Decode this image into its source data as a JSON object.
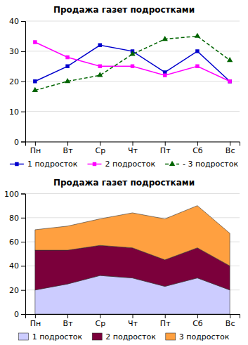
{
  "chart_data": [
    {
      "type": "line",
      "title": "Продажа газет подростками",
      "categories": [
        "Пн",
        "Вт",
        "Ср",
        "Чт",
        "Пт",
        "Сб",
        "Вс"
      ],
      "series": [
        {
          "name": "1 подросток",
          "color": "#0000CD",
          "values": [
            20,
            25,
            32,
            30,
            23,
            30,
            20
          ],
          "marker": "square",
          "line_style": "solid"
        },
        {
          "name": "2 подросток",
          "color": "#FF00FF",
          "values": [
            33,
            28,
            25,
            25,
            22,
            25,
            20
          ],
          "marker": "square",
          "line_style": "solid"
        },
        {
          "name": "- 3 подросток",
          "color": "#006400",
          "values": [
            17,
            20,
            22,
            29,
            34,
            35,
            27
          ],
          "marker": "triangle",
          "line_style": "dashed"
        }
      ],
      "ylim": [
        0,
        40
      ],
      "yticks": [
        0,
        10,
        20,
        30,
        40
      ],
      "grid": true
    },
    {
      "type": "area",
      "stacked": true,
      "title": "Продажа газет подростками",
      "categories": [
        "Пн",
        "Вт",
        "Ср",
        "Чт",
        "Пт",
        "Сб",
        "Вс"
      ],
      "series": [
        {
          "name": "1 подросток",
          "color": "#CCCCFF",
          "values": [
            20,
            25,
            32,
            30,
            23,
            30,
            20
          ]
        },
        {
          "name": "2 подросток",
          "color": "#7B003B",
          "values": [
            33,
            28,
            25,
            25,
            22,
            25,
            20
          ]
        },
        {
          "name": "3 подросток",
          "color": "#FFA040",
          "values": [
            17,
            20,
            22,
            29,
            34,
            35,
            27
          ]
        }
      ],
      "ylim": [
        0,
        100
      ],
      "yticks": [
        0,
        20,
        40,
        60,
        80,
        100
      ],
      "grid": true
    }
  ]
}
